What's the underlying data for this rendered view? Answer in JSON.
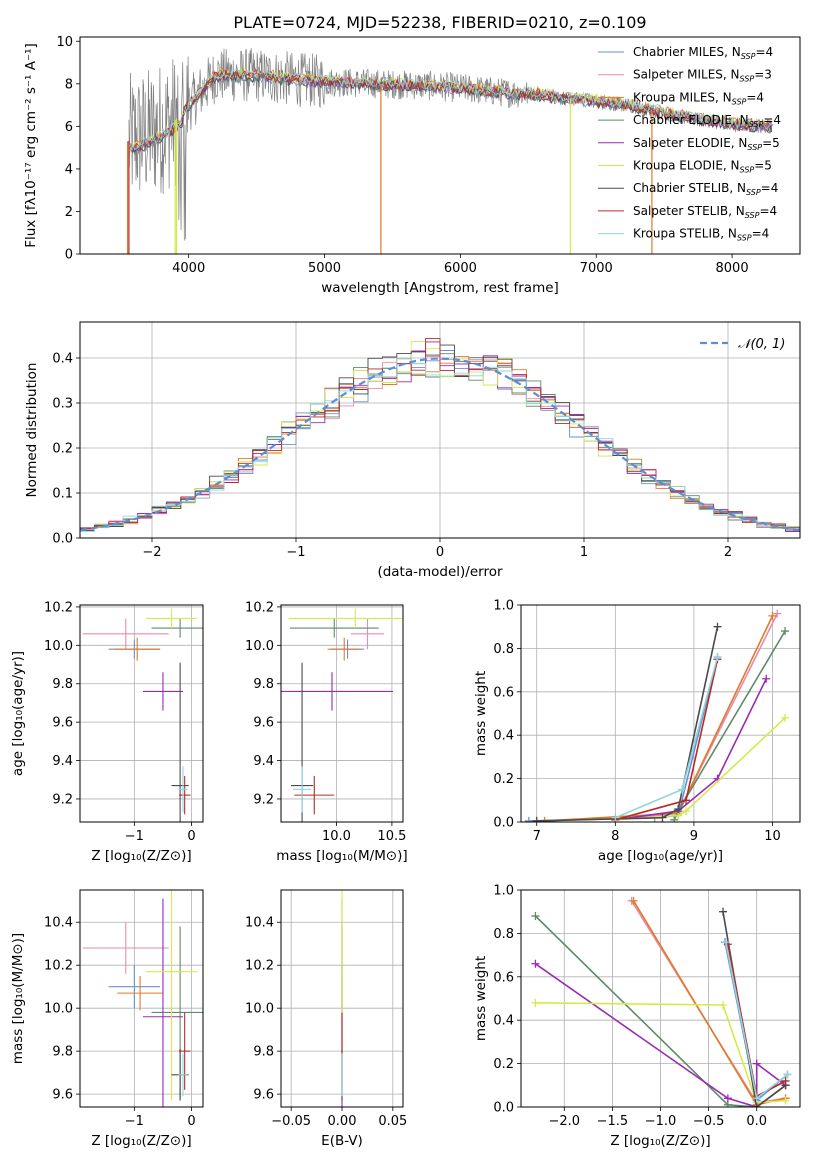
{
  "title": "PLATE=0724, MJD=52238, FIBERID=0210, z=0.109",
  "models": [
    {
      "name": "Chabrier MILES",
      "nssp": "4",
      "color": "#6b8fd4"
    },
    {
      "name": "Salpeter MILES",
      "nssp": "3",
      "color": "#e88bb0"
    },
    {
      "name": "Kroupa MILES",
      "nssp": "4",
      "color": "#e07b2a"
    },
    {
      "name": "Chabrier ELODIE",
      "nssp": "4",
      "color": "#5e8c6a"
    },
    {
      "name": "Salpeter ELODIE",
      "nssp": "5",
      "color": "#9a2bb5"
    },
    {
      "name": "Kroupa ELODIE",
      "nssp": "5",
      "color": "#d4ea4a"
    },
    {
      "name": "Chabrier STELIB",
      "nssp": "4",
      "color": "#4a4a4a"
    },
    {
      "name": "Salpeter STELIB",
      "nssp": "4",
      "color": "#b52a2a"
    },
    {
      "name": "Kroupa STELIB",
      "nssp": "4",
      "color": "#8fd6dc"
    }
  ],
  "chart_data": [
    {
      "type": "line",
      "panel": "spectrum",
      "xlabel": "wavelength [Angstrom, rest frame]",
      "ylabel": "Flux [fλ10⁻¹⁷ erg cm⁻² s⁻¹ A⁻¹]",
      "xlim": [
        3200,
        8500
      ],
      "ylim": [
        0,
        10.2
      ],
      "xticks": [
        "4000",
        "5000",
        "6000",
        "7000",
        "8000"
      ],
      "yticks": [
        "0",
        "2",
        "4",
        "6",
        "8",
        "10"
      ],
      "data_color": "#808080",
      "continuum": {
        "x": [
          3550,
          3700,
          3900,
          4000,
          4200,
          4500,
          4800,
          5000,
          5400,
          5800,
          6000,
          6300,
          6600,
          6800,
          7000,
          7300,
          7600,
          8000,
          8300
        ],
        "y": [
          5.3,
          5.6,
          6.3,
          7.0,
          8.4,
          8.4,
          8.2,
          8.1,
          8.0,
          7.9,
          7.8,
          7.6,
          7.5,
          7.3,
          7.2,
          6.9,
          6.5,
          6.1,
          6.0
        ]
      },
      "legend": "top-right"
    },
    {
      "type": "line",
      "panel": "residuals",
      "xlabel": "(data-model)/error",
      "ylabel": "Normed distribution",
      "xlim": [
        -2.5,
        2.5
      ],
      "ylim": [
        0,
        0.48
      ],
      "xticks": [
        "−2",
        "−1",
        "0",
        "1",
        "2"
      ],
      "yticks": [
        "0.0",
        "0.1",
        "0.2",
        "0.3",
        "0.4"
      ],
      "gaussian_label": "𝒩(0, 1)",
      "gaussian_color": "#5b8ed6",
      "bin_width": 0.1,
      "legend": "top-right"
    },
    {
      "type": "scatter",
      "panel": "age-vs-Z",
      "xlabel": "Z [log₁₀(Z/Z⊙)]",
      "ylabel": "age  [log₁₀(age/yr)]",
      "xlim": [
        -1.95,
        0.2
      ],
      "ylim": [
        9.08,
        10.21
      ],
      "xticks": [
        "−1",
        "0"
      ],
      "yticks": [
        "9.2",
        "9.4",
        "9.6",
        "9.8",
        "10.0",
        "10.2"
      ],
      "points": [
        {
          "x": -1.0,
          "y": 9.98,
          "xerr": 0.45,
          "yerr": 0.05
        },
        {
          "x": -1.15,
          "y": 10.06,
          "xerr": 0.75,
          "yerr": 0.08
        },
        {
          "x": -0.95,
          "y": 9.98,
          "xerr": 0.4,
          "yerr": 0.06
        },
        {
          "x": -0.2,
          "y": 10.09,
          "xerr": 0.5,
          "yerr": 0.05
        },
        {
          "x": -0.5,
          "y": 9.76,
          "xerr": 0.35,
          "yerr": 0.1
        },
        {
          "x": -0.35,
          "y": 10.14,
          "xerr": 0.45,
          "yerr": 0.05
        },
        {
          "x": -0.2,
          "y": 9.27,
          "xerr": 0.15,
          "yerr": 0.64
        },
        {
          "x": -0.12,
          "y": 9.22,
          "xerr": 0.1,
          "yerr": 0.1
        },
        {
          "x": -0.15,
          "y": 9.25,
          "xerr": 0.08,
          "yerr": 0.12
        }
      ]
    },
    {
      "type": "scatter",
      "panel": "age-vs-mass",
      "xlabel": "mass [log₁₀(M/M⊙)]",
      "ylabel": "",
      "xlim": [
        9.5,
        10.6
      ],
      "ylim": [
        9.08,
        10.21
      ],
      "xticks": [
        "10.0",
        "10.5"
      ],
      "yticks": [
        "9.2",
        "9.4",
        "9.6",
        "9.8",
        "10.0",
        "10.2"
      ],
      "points": [
        {
          "x": 10.1,
          "y": 9.98,
          "xerr": 0.15,
          "yerr": 0.05
        },
        {
          "x": 10.28,
          "y": 10.06,
          "xerr": 0.15,
          "yerr": 0.08
        },
        {
          "x": 10.07,
          "y": 9.98,
          "xerr": 0.15,
          "yerr": 0.06
        },
        {
          "x": 9.98,
          "y": 10.09,
          "xerr": 0.4,
          "yerr": 0.05
        },
        {
          "x": 9.96,
          "y": 9.76,
          "xerr": 0.55,
          "yerr": 0.1
        },
        {
          "x": 10.17,
          "y": 10.14,
          "xerr": 0.6,
          "yerr": 0.05
        },
        {
          "x": 9.69,
          "y": 9.27,
          "xerr": 0.1,
          "yerr": 0.64
        },
        {
          "x": 9.8,
          "y": 9.22,
          "xerr": 0.18,
          "yerr": 0.1
        },
        {
          "x": 9.69,
          "y": 9.25,
          "xerr": 0.08,
          "yerr": 0.12
        }
      ]
    },
    {
      "type": "line",
      "panel": "weight-vs-age",
      "xlabel": "age  [log₁₀(age/yr)]",
      "ylabel": "mass weight",
      "xlim": [
        6.8,
        10.35
      ],
      "ylim": [
        0,
        1.0
      ],
      "xticks": [
        "7",
        "8",
        "9",
        "10"
      ],
      "yticks": [
        "0.0",
        "0.2",
        "0.4",
        "0.6",
        "0.8",
        "1.0"
      ],
      "series": [
        {
          "x": [
            6.9,
            8.5,
            8.8,
            9.3
          ],
          "y": [
            0.005,
            0.02,
            0.03,
            0.76
          ]
        },
        {
          "x": [
            8.0,
            8.8,
            10.06
          ],
          "y": [
            0.01,
            0.04,
            0.96
          ]
        },
        {
          "x": [
            7.1,
            8.8,
            10.0
          ],
          "y": [
            0.005,
            0.04,
            0.95
          ]
        },
        {
          "x": [
            8.75,
            8.8,
            10.16
          ],
          "y": [
            0.01,
            0.05,
            0.88
          ]
        },
        {
          "x": [
            8.0,
            8.8,
            9.3,
            9.92
          ],
          "y": [
            0.01,
            0.05,
            0.2,
            0.66
          ]
        },
        {
          "x": [
            8.0,
            8.8,
            8.9,
            10.16
          ],
          "y": [
            0.01,
            0.03,
            0.05,
            0.48
          ]
        },
        {
          "x": [
            7.0,
            8.6,
            8.8,
            9.3
          ],
          "y": [
            0.005,
            0.02,
            0.06,
            0.9
          ]
        },
        {
          "x": [
            8.0,
            8.9,
            9.3
          ],
          "y": [
            0.01,
            0.1,
            0.75
          ]
        },
        {
          "x": [
            8.0,
            8.85,
            9.3
          ],
          "y": [
            0.02,
            0.15,
            0.76
          ]
        }
      ]
    },
    {
      "type": "scatter",
      "panel": "mass-vs-Z",
      "xlabel": "Z [log₁₀(Z/Z⊙)]",
      "ylabel": "mass [log₁₀(M/M⊙)]",
      "xlim": [
        -1.95,
        0.2
      ],
      "ylim": [
        9.54,
        10.55
      ],
      "xticks": [
        "−1",
        "0"
      ],
      "yticks": [
        "9.6",
        "9.8",
        "10.0",
        "10.2",
        "10.4"
      ],
      "points": [
        {
          "x": -1.0,
          "y": 10.1,
          "xerr": 0.45,
          "yerr": 0.1
        },
        {
          "x": -1.15,
          "y": 10.28,
          "xerr": 0.75,
          "yerr": 0.12
        },
        {
          "x": -0.9,
          "y": 10.07,
          "xerr": 0.4,
          "yerr": 0.08
        },
        {
          "x": -0.2,
          "y": 9.98,
          "xerr": 0.5,
          "yerr": 0.4
        },
        {
          "x": -0.5,
          "y": 9.96,
          "xerr": 0.35,
          "yerr": 0.55
        },
        {
          "x": -0.35,
          "y": 10.17,
          "xerr": 0.45,
          "yerr": 0.6
        },
        {
          "x": -0.2,
          "y": 9.69,
          "xerr": 0.15,
          "yerr": 0.12
        },
        {
          "x": -0.12,
          "y": 9.8,
          "xerr": 0.1,
          "yerr": 0.18
        },
        {
          "x": -0.15,
          "y": 9.69,
          "xerr": 0.08,
          "yerr": 0.1
        }
      ]
    },
    {
      "type": "scatter",
      "panel": "mass-vs-EBV",
      "xlabel": "E(B-V)",
      "ylabel": "",
      "xlim": [
        -0.06,
        0.06
      ],
      "ylim": [
        9.54,
        10.55
      ],
      "xticks": [
        "−0.05",
        "0.00",
        "0.05"
      ],
      "yticks": [
        "9.6",
        "9.8",
        "10.0",
        "10.2",
        "10.4"
      ],
      "points": [
        {
          "x": 0.0,
          "y": 10.1,
          "xerr": 0,
          "yerr": 0.1
        },
        {
          "x": 0.0,
          "y": 10.28,
          "xerr": 0,
          "yerr": 0.12
        },
        {
          "x": 0.0,
          "y": 10.07,
          "xerr": 0,
          "yerr": 0.08
        },
        {
          "x": 0.0,
          "y": 9.98,
          "xerr": 0,
          "yerr": 0.4
        },
        {
          "x": 0.0,
          "y": 9.96,
          "xerr": 0,
          "yerr": 0.55
        },
        {
          "x": 0.0,
          "y": 10.17,
          "xerr": 0,
          "yerr": 0.6
        },
        {
          "x": 0.0,
          "y": 9.69,
          "xerr": 0,
          "yerr": 0.12
        },
        {
          "x": 0.0,
          "y": 9.8,
          "xerr": 0,
          "yerr": 0.18
        },
        {
          "x": 0.0,
          "y": 9.69,
          "xerr": 0,
          "yerr": 0.1
        }
      ]
    },
    {
      "type": "line",
      "panel": "weight-vs-Z",
      "xlabel": "Z [log₁₀(Z/Z⊙)]",
      "ylabel": "mass weight",
      "xlim": [
        -2.45,
        0.45
      ],
      "ylim": [
        0,
        1.0
      ],
      "xticks": [
        "−2.0",
        "−1.5",
        "−1.0",
        "−0.5",
        "0.0"
      ],
      "yticks": [
        "0.0",
        "0.2",
        "0.4",
        "0.6",
        "0.8",
        "1.0"
      ],
      "series": [
        {
          "x": [
            -0.33,
            0.0,
            0.32
          ],
          "y": [
            0.76,
            0.03,
            0.15
          ]
        },
        {
          "x": [
            -1.3,
            0.0,
            0.3
          ],
          "y": [
            0.95,
            0.02,
            0.04
          ]
        },
        {
          "x": [
            -1.28,
            0.0,
            0.3
          ],
          "y": [
            0.95,
            0.01,
            0.04
          ]
        },
        {
          "x": [
            -2.3,
            -0.3,
            0.0,
            0.3
          ],
          "y": [
            0.88,
            0.01,
            0.0,
            0.1
          ]
        },
        {
          "x": [
            -2.3,
            -0.3,
            0.0,
            0.0,
            0.3
          ],
          "y": [
            0.66,
            0.04,
            0.0,
            0.2,
            0.1
          ]
        },
        {
          "x": [
            -2.3,
            -0.35,
            0.0,
            0.3
          ],
          "y": [
            0.48,
            0.47,
            0.02,
            0.03
          ]
        },
        {
          "x": [
            -0.35,
            0.0,
            0.3
          ],
          "y": [
            0.9,
            0.0,
            0.1
          ]
        },
        {
          "x": [
            -0.3,
            0.0,
            0.3
          ],
          "y": [
            0.75,
            0.05,
            0.12
          ]
        },
        {
          "x": [
            -0.32,
            0.0,
            0.32
          ],
          "y": [
            0.76,
            0.04,
            0.15
          ]
        }
      ]
    }
  ]
}
